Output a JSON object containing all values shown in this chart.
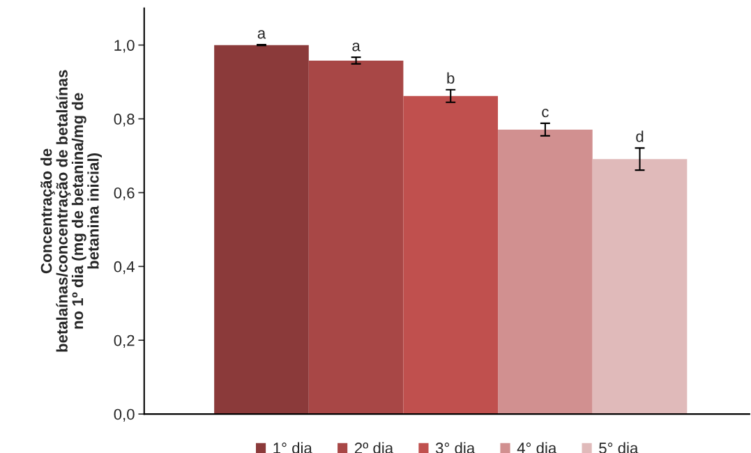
{
  "chart_data": {
    "type": "bar",
    "ylabel": "Concentração de\nbetalaínas/concentração de betalaínas\nno 1º dia (mg de betanina/mg de\nbetanina inicial)",
    "categories": [
      null
    ],
    "series": [
      {
        "name": "1° dia",
        "color": "#8b3a3a",
        "values": [
          1.0
        ],
        "errors": [
          0.001
        ]
      },
      {
        "name": "2º dia",
        "color": "#a84746",
        "values": [
          0.958
        ],
        "errors": [
          0.009
        ]
      },
      {
        "name": "3° dia",
        "color": "#c0504e",
        "values": [
          0.862
        ],
        "errors": [
          0.017
        ]
      },
      {
        "name": "4° dia",
        "color": "#d19090",
        "values": [
          0.771
        ],
        "errors": [
          0.017
        ]
      },
      {
        "name": "5° dia",
        "color": "#e0baba",
        "values": [
          0.691
        ],
        "errors": [
          0.03
        ]
      }
    ],
    "annotations": [
      "a",
      "a",
      "b",
      "c",
      "d"
    ],
    "ylim": [
      0,
      1.1
    ],
    "yticks": [
      {
        "value": 0,
        "label": "0,0"
      },
      {
        "value": 0.2,
        "label": "0,2"
      },
      {
        "value": 0.4,
        "label": "0,4"
      },
      {
        "value": 0.6,
        "label": "0,6"
      },
      {
        "value": 0.8,
        "label": "0,8"
      },
      {
        "value": 1.0,
        "label": "1,0"
      }
    ],
    "grid": false,
    "legend": "bottom"
  }
}
